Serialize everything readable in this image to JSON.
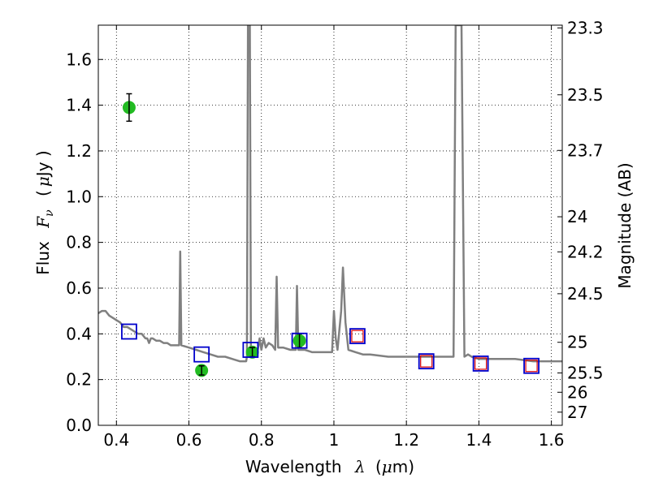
{
  "chart_data": {
    "type": "scatter",
    "title": "",
    "xlabel": {
      "prefix": "Wavelength",
      "symbol": "λ",
      "unit_open": "(",
      "unit_mu": "μ",
      "unit_rest": "m)"
    },
    "ylabel": {
      "prefix": "Flux",
      "symbol": "F",
      "subscript": "ν",
      "unit_open": "(",
      "unit_mu": "μ",
      "unit_rest": "Jy )"
    },
    "ylabel_right": "Magnitude (AB)",
    "xlim": [
      0.35,
      1.63
    ],
    "ylim": [
      0.0,
      1.75
    ],
    "x_ticks": [
      0.4,
      0.6,
      0.8,
      1.0,
      1.2,
      1.4,
      1.6
    ],
    "x_tick_labels": [
      "0.4",
      "0.6",
      "0.8",
      "1",
      "1.2",
      "1.4",
      "1.6"
    ],
    "y_ticks": [
      0.0,
      0.2,
      0.4,
      0.6,
      0.8,
      1.0,
      1.2,
      1.4,
      1.6
    ],
    "y_tick_labels": [
      "0.0",
      "0.2",
      "0.4",
      "0.6",
      "0.8",
      "1.0",
      "1.2",
      "1.4",
      "1.6"
    ],
    "mag_ticks": [
      "23.3",
      "23.5",
      "23.7",
      "24",
      "24.2",
      "24.5",
      "25",
      "25.5",
      "26",
      "27"
    ],
    "grid": true,
    "colors": {
      "spectrum": "#808080",
      "observed": "#22bb22",
      "model_blue": "#0000cc",
      "model_red": "#dd0000"
    },
    "series": [
      {
        "kind": "template-spectrum",
        "points": [
          [
            0.35,
            0.49
          ],
          [
            0.36,
            0.5
          ],
          [
            0.37,
            0.5
          ],
          [
            0.38,
            0.48
          ],
          [
            0.39,
            0.47
          ],
          [
            0.4,
            0.46
          ],
          [
            0.41,
            0.45
          ],
          [
            0.42,
            0.43
          ],
          [
            0.43,
            0.43
          ],
          [
            0.44,
            0.42
          ],
          [
            0.45,
            0.41
          ],
          [
            0.46,
            0.4
          ],
          [
            0.47,
            0.4
          ],
          [
            0.48,
            0.38
          ],
          [
            0.485,
            0.38
          ],
          [
            0.49,
            0.36
          ],
          [
            0.495,
            0.38
          ],
          [
            0.5,
            0.38
          ],
          [
            0.51,
            0.37
          ],
          [
            0.52,
            0.37
          ],
          [
            0.53,
            0.36
          ],
          [
            0.54,
            0.36
          ],
          [
            0.55,
            0.35
          ],
          [
            0.57,
            0.35
          ],
          [
            0.573,
            0.35
          ],
          [
            0.576,
            0.76
          ],
          [
            0.579,
            0.35
          ],
          [
            0.6,
            0.34
          ],
          [
            0.62,
            0.33
          ],
          [
            0.64,
            0.32
          ],
          [
            0.66,
            0.31
          ],
          [
            0.68,
            0.3
          ],
          [
            0.7,
            0.3
          ],
          [
            0.72,
            0.29
          ],
          [
            0.74,
            0.28
          ],
          [
            0.758,
            0.28
          ],
          [
            0.76,
            0.3
          ],
          [
            0.763,
            1.75
          ],
          [
            0.768,
            1.75
          ],
          [
            0.771,
            0.33
          ],
          [
            0.78,
            0.32
          ],
          [
            0.79,
            0.33
          ],
          [
            0.795,
            0.38
          ],
          [
            0.8,
            0.33
          ],
          [
            0.806,
            0.38
          ],
          [
            0.812,
            0.34
          ],
          [
            0.82,
            0.36
          ],
          [
            0.83,
            0.35
          ],
          [
            0.838,
            0.33
          ],
          [
            0.842,
            0.65
          ],
          [
            0.846,
            0.34
          ],
          [
            0.86,
            0.34
          ],
          [
            0.88,
            0.33
          ],
          [
            0.895,
            0.33
          ],
          [
            0.898,
            0.61
          ],
          [
            0.902,
            0.33
          ],
          [
            0.92,
            0.33
          ],
          [
            0.94,
            0.32
          ],
          [
            0.96,
            0.32
          ],
          [
            0.98,
            0.32
          ],
          [
            0.995,
            0.32
          ],
          [
            1.0,
            0.5
          ],
          [
            1.005,
            0.38
          ],
          [
            1.01,
            0.33
          ],
          [
            1.02,
            0.5
          ],
          [
            1.025,
            0.69
          ],
          [
            1.032,
            0.45
          ],
          [
            1.04,
            0.33
          ],
          [
            1.06,
            0.32
          ],
          [
            1.08,
            0.31
          ],
          [
            1.1,
            0.31
          ],
          [
            1.15,
            0.3
          ],
          [
            1.2,
            0.3
          ],
          [
            1.25,
            0.3
          ],
          [
            1.3,
            0.3
          ],
          [
            1.33,
            0.3
          ],
          [
            1.336,
            1.75
          ],
          [
            1.352,
            1.75
          ],
          [
            1.36,
            0.3
          ],
          [
            1.37,
            0.31
          ],
          [
            1.38,
            0.3
          ],
          [
            1.4,
            0.29
          ],
          [
            1.45,
            0.29
          ],
          [
            1.5,
            0.29
          ],
          [
            1.55,
            0.28
          ],
          [
            1.6,
            0.28
          ],
          [
            1.63,
            0.28
          ]
        ]
      },
      {
        "kind": "observed",
        "points": [
          {
            "x": 0.435,
            "y": 1.39,
            "err": 0.06
          },
          {
            "x": 0.635,
            "y": 0.24,
            "err": 0.02
          },
          {
            "x": 0.775,
            "y": 0.32,
            "err": 0.02
          },
          {
            "x": 0.905,
            "y": 0.37,
            "err": 0.03
          }
        ]
      },
      {
        "kind": "model-blue",
        "points": [
          {
            "x": 0.435,
            "y": 0.41
          },
          {
            "x": 0.635,
            "y": 0.31
          },
          {
            "x": 0.77,
            "y": 0.33
          },
          {
            "x": 0.905,
            "y": 0.37
          },
          {
            "x": 1.065,
            "y": 0.39
          },
          {
            "x": 1.255,
            "y": 0.28
          },
          {
            "x": 1.405,
            "y": 0.27
          },
          {
            "x": 1.545,
            "y": 0.26
          }
        ]
      },
      {
        "kind": "model-red",
        "points": [
          {
            "x": 1.065,
            "y": 0.39
          },
          {
            "x": 1.255,
            "y": 0.28
          },
          {
            "x": 1.405,
            "y": 0.27
          },
          {
            "x": 1.545,
            "y": 0.26
          }
        ]
      }
    ]
  }
}
